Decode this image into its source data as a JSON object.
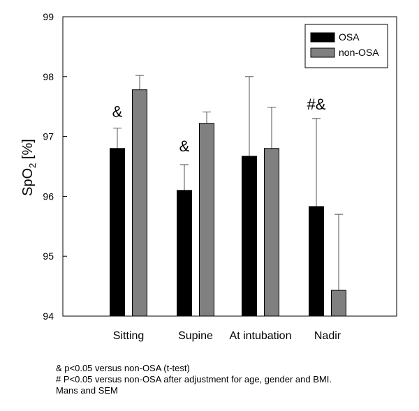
{
  "chart_data": {
    "type": "bar",
    "ylabel_main": "SpO",
    "ylabel_sub": "2",
    "ylabel_unit": " [%]",
    "ylim": [
      94,
      99
    ],
    "yticks": [
      94,
      95,
      96,
      97,
      98,
      99
    ],
    "categories": [
      "Sitting",
      "Supine",
      "At intubation",
      "Nadir"
    ],
    "series": [
      {
        "name": "OSA",
        "color": "#000000",
        "values": [
          96.8,
          96.1,
          96.67,
          95.83
        ],
        "errors": [
          0.34,
          0.43,
          1.33,
          1.47
        ]
      },
      {
        "name": "non-OSA",
        "color": "#808080",
        "values": [
          97.78,
          97.22,
          96.8,
          94.43
        ],
        "errors": [
          0.24,
          0.19,
          0.69,
          1.27
        ]
      }
    ],
    "annotations": [
      {
        "text": "&",
        "category": 0,
        "y": 97.33
      },
      {
        "text": "&",
        "category": 1,
        "y": 96.75
      },
      {
        "text": "#&",
        "category": 3,
        "y": 97.45
      }
    ],
    "legend_position": "top-right",
    "grid": false
  },
  "footnotes": [
    "& p<0.05 versus non-OSA (t-test)",
    "# P<0.05 versus non-OSA after adjustment for age, gender and BMI.",
    "Mans and SEM"
  ]
}
